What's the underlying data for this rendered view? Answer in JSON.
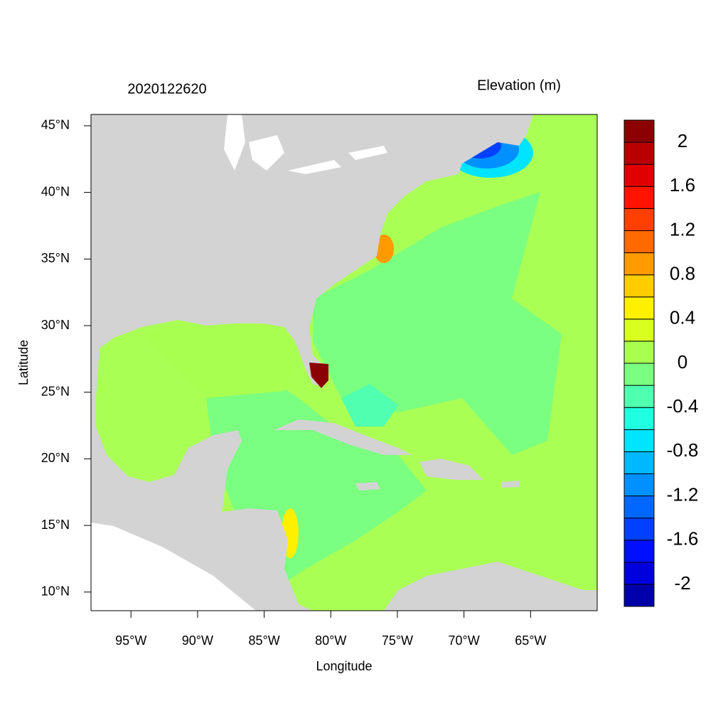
{
  "chart_data": {
    "type": "contour-map",
    "title": "2020122620",
    "subtitle": "Elevation (m)",
    "x_label": "Longitude",
    "y_label": "Latitude",
    "xlim": [
      -98,
      -60
    ],
    "ylim": [
      8.6,
      45.85
    ],
    "xticks": [
      {
        "value": -95,
        "label": "95°W"
      },
      {
        "value": -90,
        "label": "90°W"
      },
      {
        "value": -85,
        "label": "85°W"
      },
      {
        "value": -80,
        "label": "80°W"
      },
      {
        "value": -75,
        "label": "75°W"
      },
      {
        "value": -70,
        "label": "70°W"
      },
      {
        "value": -65,
        "label": "65°W"
      }
    ],
    "yticks": [
      {
        "value": 10,
        "label": "10°N"
      },
      {
        "value": 15,
        "label": "15°N"
      },
      {
        "value": 20,
        "label": "20°N"
      },
      {
        "value": 25,
        "label": "25°N"
      },
      {
        "value": 30,
        "label": "30°N"
      },
      {
        "value": 35,
        "label": "35°N"
      },
      {
        "value": 40,
        "label": "40°N"
      },
      {
        "value": 45,
        "label": "45°N"
      }
    ],
    "levels": [
      -2.2,
      -2,
      -1.8,
      -1.6,
      -1.4,
      -1.2,
      -1,
      -0.8,
      -0.6,
      -0.4,
      -0.2,
      0,
      0.2,
      0.4,
      0.6,
      0.8,
      1,
      1.2,
      1.4,
      1.6,
      1.8,
      2,
      2.2
    ],
    "colors": [
      "#0000aa",
      "#0000dd",
      "#0010ff",
      "#0040ff",
      "#0068ff",
      "#0090ff",
      "#00b8ff",
      "#00e4ff",
      "#20ffe0",
      "#50ffb0",
      "#7aff80",
      "#a8ff50",
      "#d8ff20",
      "#fff000",
      "#ffcc00",
      "#ff9a00",
      "#ff6a00",
      "#ff4000",
      "#ff1400",
      "#e00000",
      "#b80000",
      "#8b0000"
    ],
    "colorbar_ticks": [
      2,
      1.6,
      1.2,
      0.8,
      0.4,
      0,
      -0.4,
      -0.8,
      -1.2,
      -1.6,
      -2
    ]
  }
}
